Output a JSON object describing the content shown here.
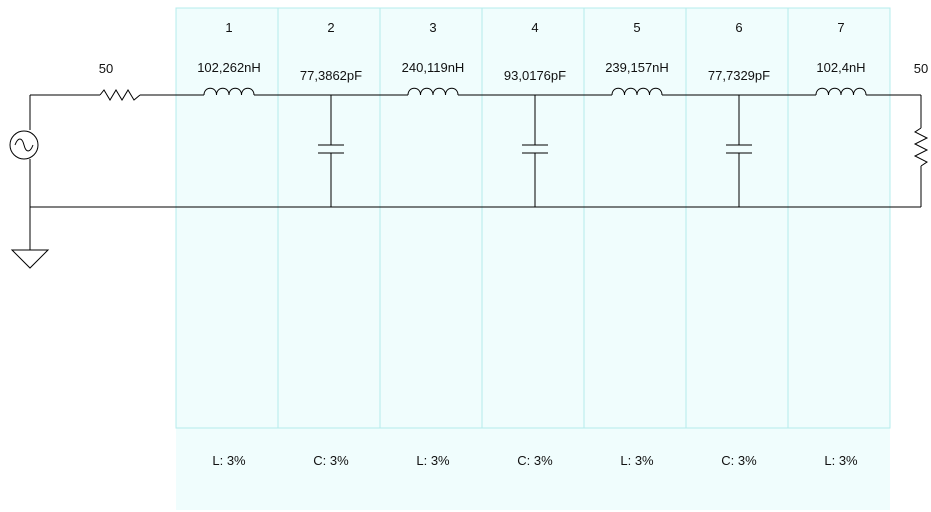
{
  "source": {
    "resistance": "50"
  },
  "load": {
    "resistance": "50"
  },
  "sections": [
    {
      "number": "1",
      "type": "inductor",
      "value": "102,262nH",
      "tolerance": "L: 3%"
    },
    {
      "number": "2",
      "type": "capacitor",
      "value": "77,3862pF",
      "tolerance": "C: 3%"
    },
    {
      "number": "3",
      "type": "inductor",
      "value": "240,119nH",
      "tolerance": "L: 3%"
    },
    {
      "number": "4",
      "type": "capacitor",
      "value": "93,0176pF",
      "tolerance": "C: 3%"
    },
    {
      "number": "5",
      "type": "inductor",
      "value": "239,157nH",
      "tolerance": "L: 3%"
    },
    {
      "number": "6",
      "type": "capacitor",
      "value": "77,7329pF",
      "tolerance": "C: 3%"
    },
    {
      "number": "7",
      "type": "inductor",
      "value": "102,4nH",
      "tolerance": "L: 3%"
    }
  ],
  "colors": {
    "section_fill": "#f0fdfd",
    "section_border": "#b4ecec",
    "wire": "#000000"
  }
}
